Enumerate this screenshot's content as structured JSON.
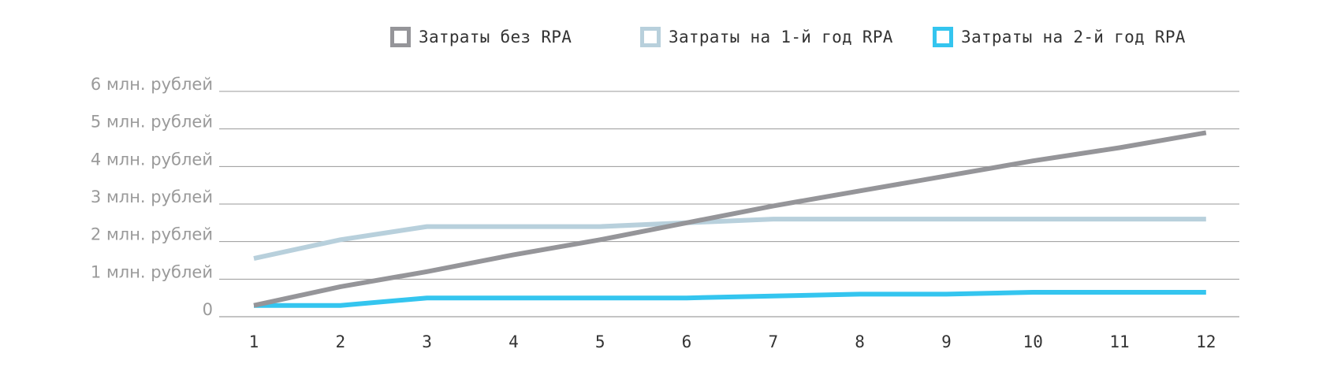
{
  "chart_data": {
    "type": "line",
    "x": [
      1,
      2,
      3,
      4,
      5,
      6,
      7,
      8,
      9,
      10,
      11,
      12
    ],
    "x_tick_labels": [
      "1",
      "2",
      "3",
      "4",
      "5",
      "6",
      "7",
      "8",
      "9",
      "10",
      "11",
      "12"
    ],
    "y_tick_labels": [
      "0",
      "1 млн. рублей",
      "2 млн. рублей",
      "3 млн. рублей",
      "4 млн. рублей",
      "5 млн. рублей",
      "6 млн. рублей"
    ],
    "y_tick_values": [
      0,
      1,
      2,
      3,
      4,
      5,
      6
    ],
    "ylim": [
      0,
      6
    ],
    "grid": true,
    "legend_position": "top",
    "series": [
      {
        "name": "Затраты без RPA",
        "color": "#959599",
        "values": [
          0.3,
          0.8,
          1.2,
          1.65,
          2.05,
          2.5,
          2.95,
          3.35,
          3.75,
          4.15,
          4.5,
          4.9
        ]
      },
      {
        "name": "Затраты на 1-й год RPA",
        "color": "#b8d0dc",
        "values": [
          1.55,
          2.05,
          2.4,
          2.4,
          2.4,
          2.5,
          2.6,
          2.6,
          2.6,
          2.6,
          2.6,
          2.6
        ]
      },
      {
        "name": "Затраты на 2-й год RPA",
        "color": "#34c5ef",
        "values": [
          0.3,
          0.3,
          0.5,
          0.5,
          0.5,
          0.5,
          0.55,
          0.6,
          0.6,
          0.65,
          0.65,
          0.65
        ]
      }
    ]
  }
}
